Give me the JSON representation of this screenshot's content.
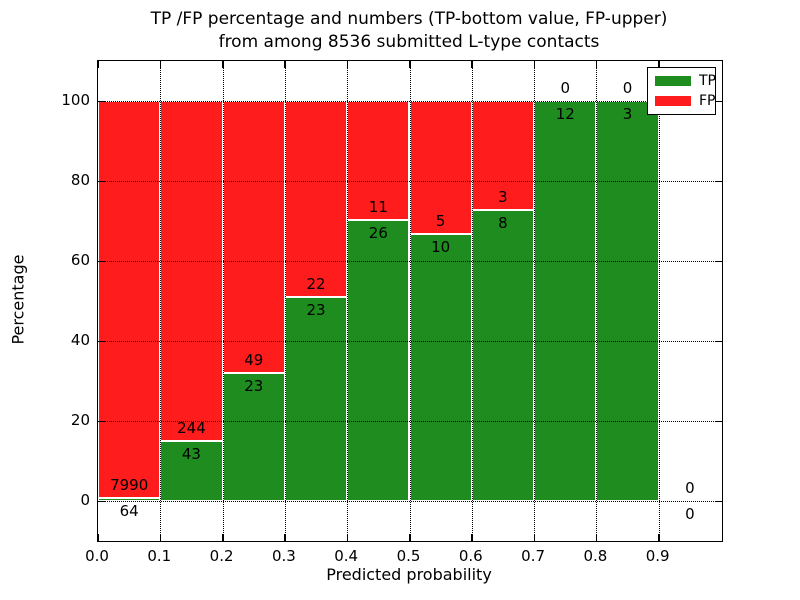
{
  "title": {
    "line1": "TP /FP percentage and numbers (TP-bottom value, FP-upper)",
    "line2": "from among 8536 submitted L-type contacts"
  },
  "axes": {
    "xlabel": "Predicted probability",
    "ylabel": "Percentage",
    "xtick_labels": [
      "0.0",
      "0.1",
      "0.2",
      "0.3",
      "0.4",
      "0.5",
      "0.6",
      "0.7",
      "0.8",
      "0.9"
    ],
    "xtick_values": [
      0.0,
      0.1,
      0.2,
      0.3,
      0.4,
      0.5,
      0.6,
      0.7,
      0.8,
      0.9
    ],
    "ytick_labels": [
      "0",
      "20",
      "40",
      "60",
      "80",
      "100"
    ],
    "ytick_values": [
      0,
      20,
      40,
      60,
      80,
      100
    ],
    "xlim": [
      0.0,
      1.0
    ],
    "ylim": [
      -10,
      110
    ],
    "grid": "dotted black, drawn above bars"
  },
  "legend": {
    "position": "upper right",
    "items": [
      {
        "label": "TP",
        "color": "#1e8c1e"
      },
      {
        "label": "FP",
        "color": "#ff1c1c"
      }
    ]
  },
  "chart_data": {
    "type": "bar",
    "stacked": true,
    "title": "TP /FP percentage and numbers (TP-bottom value, FP-upper) from among 8536 submitted L-type contacts",
    "xlabel": "Predicted probability",
    "ylabel": "Percentage",
    "total_contacts": 8536,
    "bin_width": 0.1,
    "bar_edge_color": "#ffffff",
    "colors": {
      "tp": "#1e8c1e",
      "fp": "#ff1c1c"
    },
    "bins": [
      {
        "x0": 0.0,
        "x1": 0.1,
        "tp": 64,
        "fp": 7990,
        "tp_pct": 0.79,
        "fp_pct": 99.21
      },
      {
        "x0": 0.1,
        "x1": 0.2,
        "tp": 43,
        "fp": 244,
        "tp_pct": 14.98,
        "fp_pct": 85.02
      },
      {
        "x0": 0.2,
        "x1": 0.3,
        "tp": 23,
        "fp": 49,
        "tp_pct": 31.94,
        "fp_pct": 68.06
      },
      {
        "x0": 0.3,
        "x1": 0.4,
        "tp": 23,
        "fp": 22,
        "tp_pct": 51.11,
        "fp_pct": 48.89
      },
      {
        "x0": 0.4,
        "x1": 0.5,
        "tp": 26,
        "fp": 11,
        "tp_pct": 70.27,
        "fp_pct": 29.73
      },
      {
        "x0": 0.5,
        "x1": 0.6,
        "tp": 10,
        "fp": 5,
        "tp_pct": 66.67,
        "fp_pct": 33.33
      },
      {
        "x0": 0.6,
        "x1": 0.7,
        "tp": 8,
        "fp": 3,
        "tp_pct": 72.73,
        "fp_pct": 27.27
      },
      {
        "x0": 0.7,
        "x1": 0.8,
        "tp": 12,
        "fp": 0,
        "tp_pct": 100.0,
        "fp_pct": 0.0
      },
      {
        "x0": 0.8,
        "x1": 0.9,
        "tp": 3,
        "fp": 0,
        "tp_pct": 100.0,
        "fp_pct": 0.0
      },
      {
        "x0": 0.9,
        "x1": 1.0,
        "tp": 0,
        "fp": 0,
        "tp_pct": 0.0,
        "fp_pct": 0.0
      }
    ]
  }
}
